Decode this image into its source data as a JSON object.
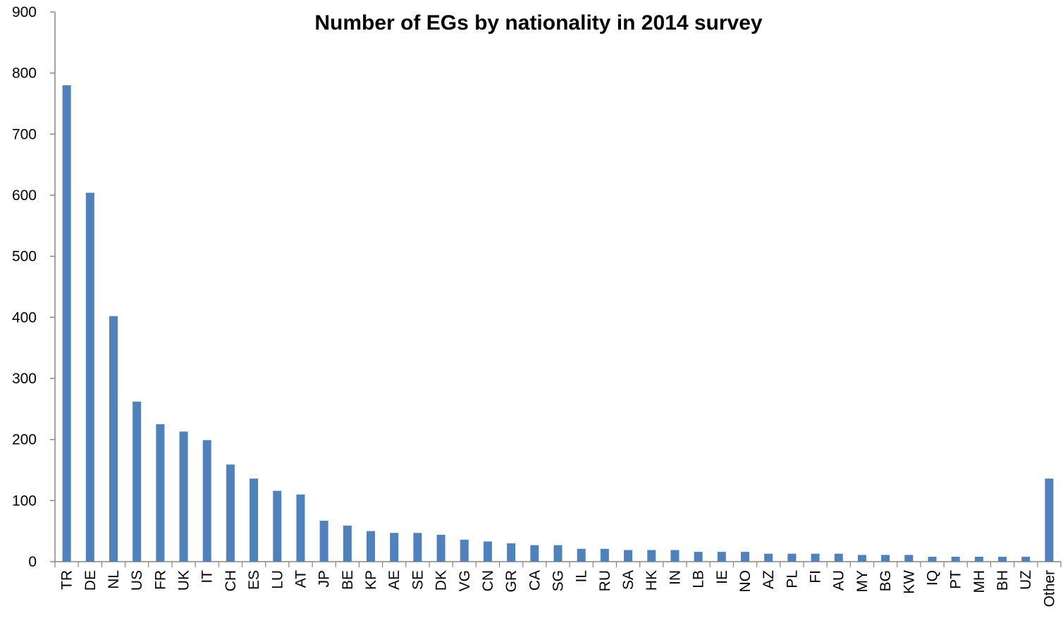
{
  "chart_data": {
    "type": "bar",
    "title": "Number of EGs by nationality in 2014 survey",
    "xlabel": "",
    "ylabel": "",
    "ylim": [
      0,
      900
    ],
    "yticks": [
      0,
      100,
      200,
      300,
      400,
      500,
      600,
      700,
      800,
      900
    ],
    "grid": false,
    "legend": "none",
    "bar_color": "#4f81bd",
    "categories": [
      "TR",
      "DE",
      "NL",
      "US",
      "FR",
      "UK",
      "IT",
      "CH",
      "ES",
      "LU",
      "AT",
      "JP",
      "BE",
      "KP",
      "AE",
      "SE",
      "DK",
      "VG",
      "CN",
      "GR",
      "CA",
      "SG",
      "IL",
      "RU",
      "SA",
      "HK",
      "IN",
      "LB",
      "IE",
      "NO",
      "AZ",
      "PL",
      "FI",
      "AU",
      "MY",
      "BG",
      "KW",
      "IQ",
      "PT",
      "MH",
      "BH",
      "UZ",
      "Other"
    ],
    "values": [
      780,
      604,
      402,
      262,
      225,
      213,
      199,
      159,
      136,
      116,
      110,
      67,
      59,
      50,
      47,
      47,
      44,
      36,
      33,
      30,
      27,
      27,
      21,
      21,
      19,
      19,
      19,
      16,
      16,
      16,
      13,
      13,
      13,
      13,
      11,
      11,
      11,
      8,
      8,
      8,
      8,
      8,
      136
    ]
  }
}
